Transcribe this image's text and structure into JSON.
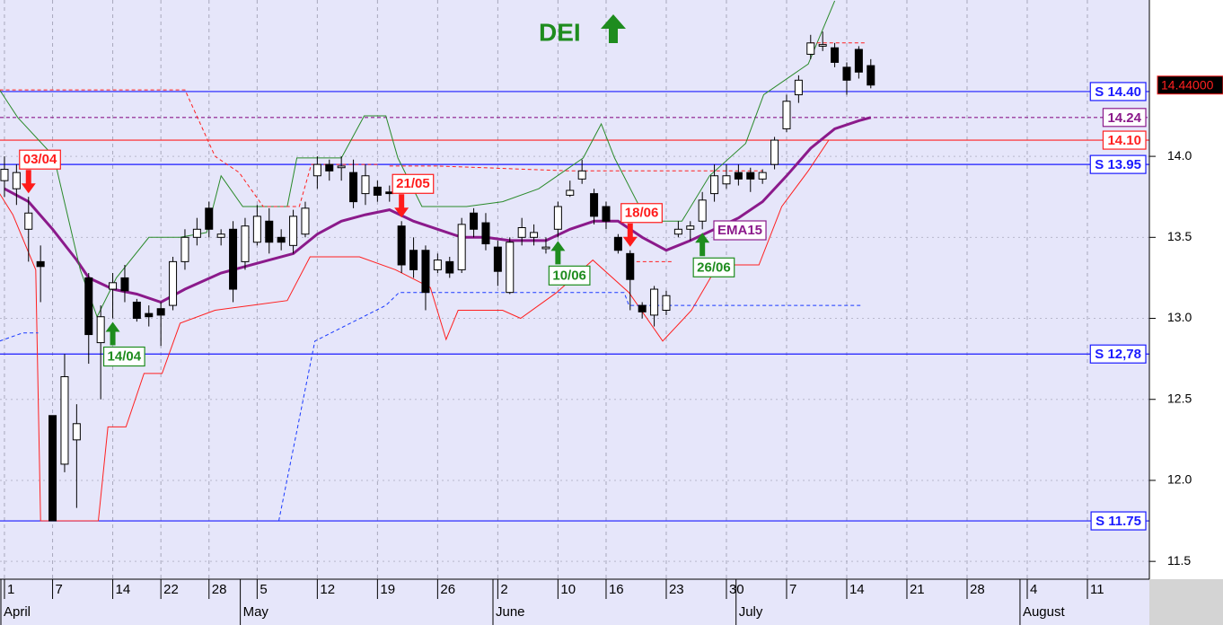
{
  "chart_data": {
    "type": "candlestick",
    "title": "DEI",
    "title_color": "#1e8c1e",
    "xlim": [
      -0.37,
      95.15
    ],
    "ylim": [
      11.39,
      14.965
    ],
    "yticks": [
      {
        "value": 11.5,
        "label": "11.5"
      },
      {
        "value": 12.0,
        "label": "12.0"
      },
      {
        "value": 12.5,
        "label": "12.5"
      },
      {
        "value": 13.0,
        "label": "13.0"
      },
      {
        "value": 13.5,
        "label": "13.5"
      },
      {
        "value": 14.0,
        "label": "14.0"
      }
    ],
    "xticks": [
      {
        "value": 0,
        "label": "1"
      },
      {
        "value": 4,
        "label": "7"
      },
      {
        "value": 9,
        "label": "14"
      },
      {
        "value": 13,
        "label": "22"
      },
      {
        "value": 17,
        "label": "28"
      },
      {
        "value": 21,
        "label": "5"
      },
      {
        "value": 26,
        "label": "12"
      },
      {
        "value": 31,
        "label": "19"
      },
      {
        "value": 36,
        "label": "26"
      },
      {
        "value": 41,
        "label": "2"
      },
      {
        "value": 46,
        "label": "10"
      },
      {
        "value": 50,
        "label": "16"
      },
      {
        "value": 55,
        "label": "23"
      },
      {
        "value": 60,
        "label": "30"
      },
      {
        "value": 65,
        "label": "7"
      },
      {
        "value": 70,
        "label": "14"
      },
      {
        "value": 75,
        "label": "21"
      },
      {
        "value": 80,
        "label": "28"
      },
      {
        "value": 85,
        "label": "4"
      },
      {
        "value": 90,
        "label": "11"
      }
    ],
    "month_ticks": [
      {
        "value": -0.3,
        "label": "April"
      },
      {
        "value": 19.6,
        "label": "May"
      },
      {
        "value": 40.6,
        "label": "June"
      },
      {
        "value": 60.8,
        "label": "July"
      },
      {
        "value": 84.4,
        "label": "August"
      }
    ],
    "grid": true,
    "x": [
      0,
      1,
      2,
      3,
      4,
      5,
      6,
      7,
      8,
      9,
      10,
      11,
      12,
      13,
      14,
      15,
      16,
      17,
      18,
      19,
      20,
      21,
      22,
      23,
      24,
      25,
      26,
      27,
      28,
      29,
      30,
      31,
      32,
      33,
      34,
      35,
      36,
      37,
      38,
      39,
      40,
      41,
      42,
      43,
      44,
      45,
      46,
      47,
      48,
      49,
      50,
      51,
      52,
      53,
      54,
      55,
      56,
      57,
      58,
      59,
      60,
      61,
      62,
      63,
      64,
      65,
      66,
      67,
      68,
      69,
      70,
      71,
      72
    ],
    "open": [
      13.85,
      13.8,
      13.55,
      13.35,
      12.4,
      12.1,
      12.25,
      13.25,
      12.85,
      13.18,
      13.25,
      13.1,
      13.03,
      13.06,
      13.08,
      13.35,
      13.5,
      13.68,
      13.5,
      13.55,
      13.35,
      13.47,
      13.6,
      13.5,
      13.45,
      13.52,
      13.88,
      13.95,
      13.93,
      13.9,
      13.77,
      13.81,
      13.78,
      13.57,
      13.42,
      13.42,
      13.3,
      13.35,
      13.3,
      13.65,
      13.59,
      13.44,
      13.16,
      13.5,
      13.5,
      13.43,
      13.55,
      13.76,
      13.86,
      13.77,
      13.69,
      13.5,
      13.4,
      13.08,
      13.02,
      13.05,
      13.52,
      13.55,
      13.6,
      13.77,
      13.83,
      13.9,
      13.9,
      13.86,
      13.95,
      14.17,
      14.38,
      14.63,
      14.68,
      14.67,
      14.55,
      14.66,
      14.56
    ],
    "high": [
      14.0,
      13.95,
      13.75,
      13.45,
      12.4,
      12.78,
      12.47,
      13.28,
      13.08,
      13.28,
      13.33,
      13.12,
      13.08,
      13.1,
      13.38,
      13.55,
      13.62,
      13.72,
      13.55,
      13.6,
      13.62,
      13.7,
      13.68,
      13.55,
      13.67,
      13.72,
      14.0,
      13.98,
      14.0,
      13.98,
      13.95,
      13.85,
      13.82,
      13.6,
      13.5,
      13.45,
      13.4,
      13.38,
      13.62,
      13.68,
      13.65,
      13.48,
      13.5,
      13.62,
      13.58,
      13.5,
      13.72,
      13.85,
      13.98,
      13.8,
      13.72,
      13.52,
      13.42,
      13.1,
      13.2,
      13.17,
      13.6,
      13.6,
      13.78,
      13.95,
      13.95,
      13.95,
      13.93,
      13.92,
      14.12,
      14.38,
      14.5,
      14.75,
      14.77,
      14.7,
      14.58,
      14.68,
      14.6
    ],
    "low": [
      13.75,
      13.7,
      13.35,
      13.1,
      11.75,
      12.05,
      11.83,
      12.72,
      12.5,
      13.0,
      13.1,
      12.98,
      12.95,
      12.83,
      13.05,
      13.3,
      13.45,
      13.5,
      13.45,
      13.1,
      13.3,
      13.45,
      13.4,
      13.42,
      13.4,
      13.5,
      13.8,
      13.85,
      13.85,
      13.68,
      13.7,
      13.72,
      13.72,
      13.28,
      13.25,
      13.05,
      13.28,
      13.25,
      13.28,
      13.5,
      13.42,
      13.2,
      13.15,
      13.45,
      13.45,
      13.4,
      13.5,
      13.75,
      13.83,
      13.58,
      13.55,
      13.4,
      13.05,
      13.0,
      12.95,
      13.02,
      13.5,
      13.48,
      13.55,
      13.72,
      13.8,
      13.82,
      13.78,
      13.83,
      13.92,
      14.15,
      14.33,
      14.6,
      14.65,
      14.55,
      14.38,
      14.48,
      14.42
    ],
    "close": [
      13.92,
      13.9,
      13.65,
      13.32,
      11.75,
      12.64,
      12.35,
      12.9,
      13.01,
      13.22,
      13.17,
      13.0,
      13.01,
      13.02,
      13.35,
      13.5,
      13.55,
      13.55,
      13.52,
      13.18,
      13.57,
      13.63,
      13.47,
      13.47,
      13.63,
      13.68,
      13.95,
      13.91,
      13.94,
      13.72,
      13.88,
      13.76,
      13.77,
      13.33,
      13.3,
      13.16,
      13.36,
      13.28,
      13.58,
      13.55,
      13.46,
      13.29,
      13.47,
      13.56,
      13.53,
      13.44,
      13.69,
      13.79,
      13.91,
      13.63,
      13.6,
      13.42,
      13.24,
      13.04,
      13.18,
      13.14,
      13.55,
      13.57,
      13.73,
      13.88,
      13.88,
      13.86,
      13.86,
      13.9,
      14.1,
      14.34,
      14.47,
      14.7,
      14.69,
      14.58,
      14.47,
      14.52,
      14.44
    ],
    "lines": [
      {
        "name": "EMA15",
        "color": "#8b1a8b",
        "style": "solid",
        "width": 3,
        "x": [
          0,
          2,
          4,
          6,
          7,
          9,
          11,
          13,
          15,
          18,
          20,
          22,
          24,
          26,
          28,
          30,
          32,
          34,
          36,
          38,
          40,
          42,
          45,
          47,
          49,
          51,
          53,
          55,
          57,
          59,
          61,
          63,
          65,
          67,
          69,
          71,
          72
        ],
        "values": [
          13.8,
          13.72,
          13.55,
          13.36,
          13.25,
          13.18,
          13.15,
          13.1,
          13.18,
          13.28,
          13.32,
          13.36,
          13.4,
          13.52,
          13.6,
          13.64,
          13.67,
          13.6,
          13.55,
          13.5,
          13.5,
          13.48,
          13.48,
          13.55,
          13.6,
          13.6,
          13.5,
          13.42,
          13.48,
          13.55,
          13.62,
          13.72,
          13.88,
          14.05,
          14.17,
          14.22,
          14.24
        ]
      },
      {
        "color": "#2a8a2a",
        "style": "solid",
        "width": 1,
        "x": [
          -0.4,
          1.1,
          4.1,
          6.3,
          7.7,
          9.3,
          12,
          14.6,
          16.8,
          18,
          19.8,
          23.5,
          24.3,
          28,
          29.9,
          31.7,
          32.7,
          34.7,
          38.4,
          41.4,
          44.4,
          48.1,
          49.6,
          50.7,
          53.4,
          56.3,
          58.6,
          61.6,
          63.1,
          66.8,
          69
        ],
        "values": [
          14.41,
          14.24,
          14.0,
          13.3,
          13.01,
          13.25,
          13.5,
          13.5,
          13.53,
          13.88,
          13.69,
          13.69,
          13.99,
          13.99,
          14.25,
          14.25,
          13.99,
          13.69,
          13.69,
          13.72,
          13.8,
          13.99,
          14.2,
          13.99,
          13.6,
          13.6,
          13.88,
          14.08,
          14.38,
          14.57,
          14.96
        ]
      },
      {
        "color": "#ff2020",
        "style": "solid",
        "width": 1,
        "x": [
          -0.4,
          0.7,
          2.6,
          3,
          7.8,
          8.6,
          10.1,
          11.6,
          13.1,
          14.6,
          17.5,
          20.5,
          23.5,
          25.4,
          29.5,
          32.5,
          35.4,
          36.7,
          37.7,
          41.4,
          42.9,
          45.9,
          48.9,
          51.9,
          54.7,
          57.1,
          59.3,
          62.7,
          64.6,
          66.8,
          68.5
        ],
        "values": [
          13.77,
          13.64,
          13.3,
          11.75,
          11.75,
          12.33,
          12.33,
          12.66,
          12.66,
          12.97,
          13.05,
          13.08,
          13.11,
          13.38,
          13.38,
          13.3,
          13.19,
          12.87,
          13.05,
          13.05,
          13.0,
          13.16,
          13.36,
          13.16,
          12.86,
          13.05,
          13.33,
          13.33,
          13.69,
          13.91,
          14.1
        ]
      },
      {
        "color": "#ff2020",
        "style": "dashed",
        "width": 1,
        "x": [
          -0.4,
          15,
          17.5,
          19.5,
          21.5,
          24.5,
          25.5,
          31,
          null,
          32,
          36,
          47,
          63,
          null,
          52,
          55.5,
          null,
          67,
          71.5
        ],
        "values": [
          14.41,
          14.41,
          14.0,
          13.9,
          13.69,
          13.69,
          13.95,
          13.95,
          null,
          13.94,
          13.94,
          13.91,
          13.91,
          null,
          13.35,
          13.35,
          null,
          14.7,
          14.7
        ]
      },
      {
        "color": "#1a3aff",
        "style": "dashed",
        "width": 1,
        "x": [
          -0.4,
          1.5,
          2.8,
          null,
          22.8,
          25.8,
          31.7,
          32.8,
          51.5,
          51.9,
          71.3
        ],
        "values": [
          12.86,
          12.91,
          12.91,
          null,
          11.75,
          12.86,
          13.08,
          13.16,
          13.16,
          13.08,
          13.08
        ]
      }
    ],
    "levels": [
      {
        "value": 14.4,
        "label": "S 14.40",
        "color": "#1a1aff",
        "style": "solid"
      },
      {
        "value": 14.24,
        "label": "14.24",
        "color": "#8b1a8b",
        "style": "dashed"
      },
      {
        "value": 14.1,
        "label": "14.10",
        "color": "#ff2020",
        "style": "solid"
      },
      {
        "value": 13.95,
        "label": "S 13.95",
        "color": "#1a1aff",
        "style": "solid"
      },
      {
        "value": 12.78,
        "label": "S 12,78",
        "color": "#1a1aff",
        "style": "solid"
      },
      {
        "value": 11.75,
        "label": "S 11.75",
        "color": "#1a1aff",
        "style": "solid"
      }
    ],
    "signals": [
      {
        "x": 2,
        "label": "03/04",
        "direction": "down",
        "color": "#ff1a1a"
      },
      {
        "x": 9,
        "label": "14/04",
        "direction": "up",
        "color": "#1e8c1e"
      },
      {
        "x": 33,
        "label": "21/05",
        "direction": "down",
        "color": "#ff1a1a"
      },
      {
        "x": 46,
        "label": "10/06",
        "direction": "up",
        "color": "#1e8c1e"
      },
      {
        "x": 52,
        "label": "18/06",
        "direction": "down",
        "color": "#ff1a1a"
      },
      {
        "x": 58,
        "label": "26/06",
        "direction": "up",
        "color": "#1e8c1e"
      }
    ],
    "last_price": {
      "value": 14.44,
      "label": "14.44000",
      "color": "#ff2020"
    }
  }
}
